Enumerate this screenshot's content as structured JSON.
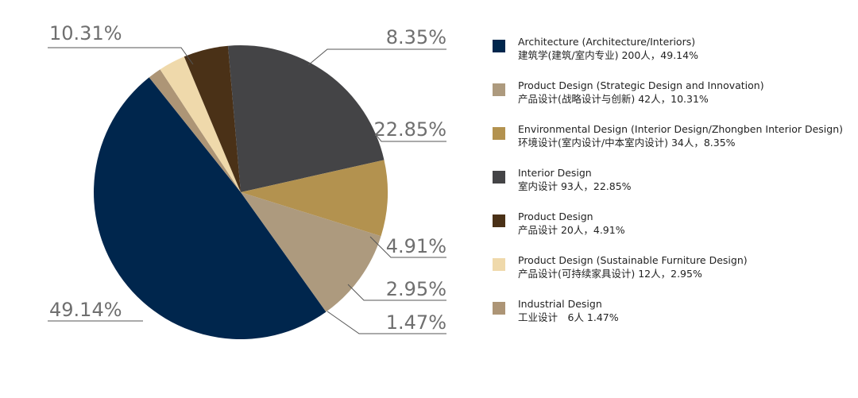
{
  "chart_data": {
    "type": "pie",
    "title": "",
    "slices": [
      {
        "label": "Architecture (Architecture/Interiors)",
        "sublabel": "建筑学(建筑/室内专业) 200人，49.14%",
        "pct_label": "49.14%",
        "value": 49.14,
        "color": "#00264d"
      },
      {
        "label": "Industrial Design",
        "sublabel": "工业设计　6人 1.47%",
        "pct_label": "1.47%",
        "value": 1.47,
        "color": "#ad9576"
      },
      {
        "label": "Product Design (Sustainable Furniture Design)",
        "sublabel": "产品设计(可持续家具设计) 12人，2.95%",
        "pct_label": "2.95%",
        "value": 2.95,
        "color": "#efd9ab"
      },
      {
        "label": "Product Design",
        "sublabel": "产品设计 20人，4.91%",
        "pct_label": "4.91%",
        "value": 4.91,
        "color": "#4a3117"
      },
      {
        "label": "Interior Design",
        "sublabel": "室内设计 93人，22.85%",
        "pct_label": "22.85%",
        "value": 22.85,
        "color": "#444446"
      },
      {
        "label": "Environmental Design (Interior Design/Zhongben Interior Design)",
        "sublabel": "环境设计(室内设计/中本室内设计) 34人，8.35%",
        "pct_label": "8.35%",
        "value": 8.35,
        "color": "#b3924f"
      },
      {
        "label": "Product Design (Strategic Design and Innovation)",
        "sublabel": "产品设计(战略设计与创新) 42人，10.31%",
        "pct_label": "10.31%",
        "value": 10.31,
        "color": "#ad9a7e"
      }
    ]
  },
  "legend": [
    {
      "title": "Architecture (Architecture/Interiors)",
      "subtitle": "建筑学(建筑/室内专业) 200人，49.14%",
      "color": "#00264d"
    },
    {
      "title": "Product Design (Strategic Design and Innovation)",
      "subtitle": "产品设计(战略设计与创新) 42人，10.31%",
      "color": "#ad9a7e"
    },
    {
      "title": "Environmental Design (Interior Design/Zhongben Interior Design)",
      "subtitle": "环境设计(室内设计/中本室内设计) 34人，8.35%",
      "color": "#b3924f"
    },
    {
      "title": "Interior Design",
      "subtitle": "室内设计 93人，22.85%",
      "color": "#444446"
    },
    {
      "title": "Product Design",
      "subtitle": "产品设计 20人，4.91%",
      "color": "#4a3117"
    },
    {
      "title": "Product Design (Sustainable Furniture Design)",
      "subtitle": "产品设计(可持续家具设计) 12人，2.95%",
      "color": "#efd9ab"
    },
    {
      "title": "Industrial Design",
      "subtitle": "工业设计　6人 1.47%",
      "color": "#ad9576"
    }
  ]
}
